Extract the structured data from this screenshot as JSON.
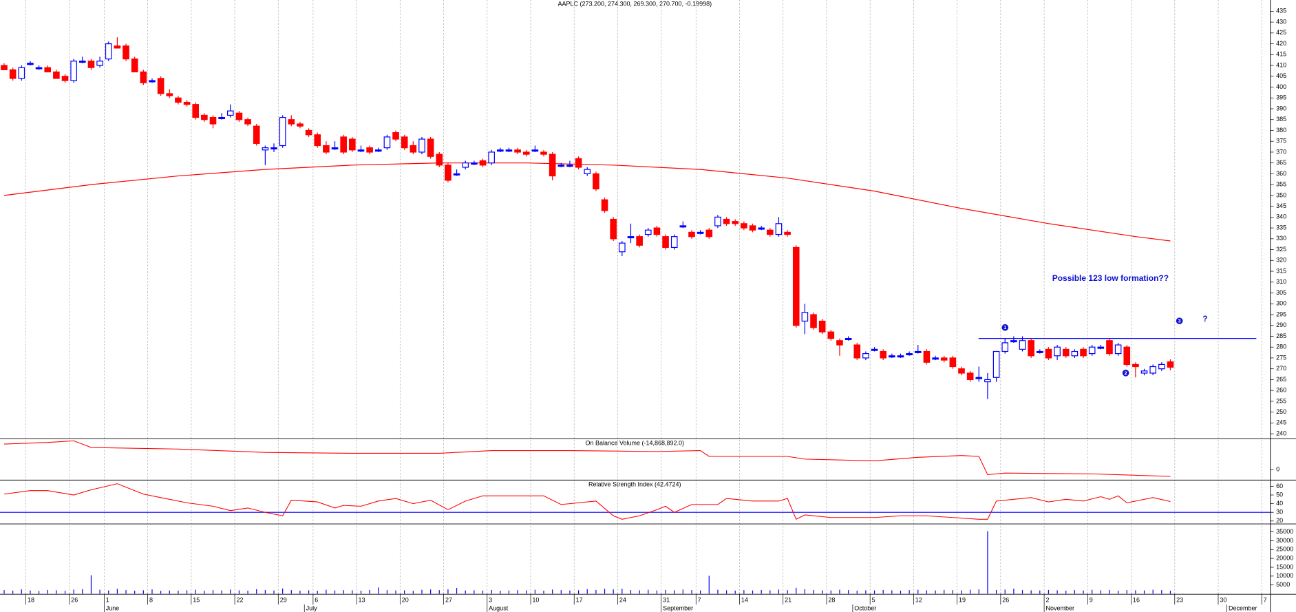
{
  "chart_data": {
    "type": "candlestick",
    "title": "AAPLC (273.200, 274.300, 269.300, 270.700, -0.19998)",
    "up_color": "#0000ff",
    "down_color": "#ff0000",
    "ylim": [
      237.9,
      440.2
    ],
    "yticks": [
      240,
      245,
      250,
      255,
      260,
      265,
      270,
      275,
      280,
      285,
      290,
      295,
      300,
      305,
      310,
      315,
      320,
      325,
      330,
      335,
      340,
      345,
      350,
      355,
      360,
      365,
      370,
      375,
      380,
      385,
      390,
      395,
      400,
      405,
      410,
      415,
      420,
      425,
      430,
      435
    ],
    "xticks": [
      {
        "value": 3,
        "label": "18"
      },
      {
        "value": 8,
        "label": "26"
      },
      {
        "value": 12,
        "label": "1"
      },
      {
        "value": 17,
        "label": "8"
      },
      {
        "value": 22,
        "label": "15"
      },
      {
        "value": 27,
        "label": "22"
      },
      {
        "value": 32,
        "label": "29"
      },
      {
        "value": 36,
        "label": "6"
      },
      {
        "value": 41,
        "label": "13"
      },
      {
        "value": 46,
        "label": "20"
      },
      {
        "value": 51,
        "label": "27"
      },
      {
        "value": 56,
        "label": "3"
      },
      {
        "value": 61,
        "label": "10"
      },
      {
        "value": 66,
        "label": "17"
      },
      {
        "value": 71,
        "label": "24"
      },
      {
        "value": 76,
        "label": "31"
      },
      {
        "value": 80,
        "label": "7"
      },
      {
        "value": 85,
        "label": "14"
      },
      {
        "value": 90,
        "label": "21"
      },
      {
        "value": 95,
        "label": "28"
      },
      {
        "value": 100,
        "label": "5"
      },
      {
        "value": 105,
        "label": "12"
      },
      {
        "value": 110,
        "label": "19"
      },
      {
        "value": 115,
        "label": "26"
      },
      {
        "value": 120,
        "label": "2"
      },
      {
        "value": 125,
        "label": "9"
      },
      {
        "value": 130,
        "label": "16"
      },
      {
        "value": 135,
        "label": "23"
      },
      {
        "value": 140,
        "label": "30"
      },
      {
        "value": 145,
        "label": "7"
      }
    ],
    "months": [
      {
        "value": 12,
        "label": "June"
      },
      {
        "value": 35,
        "label": "July"
      },
      {
        "value": 56,
        "label": "August"
      },
      {
        "value": 76,
        "label": "September"
      },
      {
        "value": 98,
        "label": "October"
      },
      {
        "value": 120,
        "label": "November"
      },
      {
        "value": 141,
        "label": "December"
      }
    ],
    "ohlc": [
      [
        410,
        411,
        408,
        408
      ],
      [
        408,
        409,
        403,
        404
      ],
      [
        404,
        410,
        403,
        409
      ],
      [
        411,
        412,
        410,
        411
      ],
      [
        409,
        410,
        408,
        409
      ],
      [
        409,
        410,
        407,
        407
      ],
      [
        407,
        408,
        404,
        404
      ],
      [
        405,
        406,
        402,
        403
      ],
      [
        403,
        413,
        402,
        412
      ],
      [
        412,
        414,
        411,
        412
      ],
      [
        412,
        413,
        408,
        409
      ],
      [
        410,
        414,
        409,
        412
      ],
      [
        413,
        421,
        412,
        420
      ],
      [
        419,
        423,
        418,
        418
      ],
      [
        419,
        420,
        412,
        413
      ],
      [
        413,
        414,
        407,
        407
      ],
      [
        407,
        408,
        401,
        402
      ],
      [
        403,
        404,
        402,
        403
      ],
      [
        404,
        405,
        396,
        397
      ],
      [
        397,
        399,
        395,
        396
      ],
      [
        395,
        396,
        392,
        393
      ],
      [
        393,
        394,
        391,
        392
      ],
      [
        392,
        393,
        385,
        386
      ],
      [
        387,
        388,
        384,
        385
      ],
      [
        386,
        387,
        381,
        383
      ],
      [
        386,
        388,
        385,
        386
      ],
      [
        387,
        392,
        386,
        389
      ],
      [
        388,
        389,
        384,
        385
      ],
      [
        385,
        386,
        382,
        383
      ],
      [
        382,
        383,
        373,
        374
      ],
      [
        371,
        373,
        364,
        372
      ],
      [
        372,
        374,
        370,
        372
      ],
      [
        373,
        387,
        372,
        386
      ],
      [
        385,
        387,
        382,
        383
      ],
      [
        383,
        384,
        381,
        382
      ],
      [
        380,
        381,
        377,
        378
      ],
      [
        378,
        379,
        372,
        373
      ],
      [
        373,
        375,
        369,
        370
      ],
      [
        372,
        375,
        371,
        372
      ],
      [
        377,
        378,
        369,
        370
      ],
      [
        376,
        377,
        370,
        371
      ],
      [
        371,
        373,
        370,
        371
      ],
      [
        372,
        373,
        369,
        370
      ],
      [
        371,
        372,
        370,
        371
      ],
      [
        372,
        378,
        371,
        377
      ],
      [
        379,
        380,
        375,
        376
      ],
      [
        377,
        378,
        371,
        372
      ],
      [
        373,
        375,
        369,
        370
      ],
      [
        370,
        377,
        369,
        376
      ],
      [
        376,
        377,
        367,
        368
      ],
      [
        369,
        370,
        363,
        364
      ],
      [
        364,
        365,
        356,
        357
      ],
      [
        360,
        362,
        359,
        360
      ],
      [
        363,
        366,
        362,
        365
      ],
      [
        365,
        366,
        364,
        365
      ],
      [
        366,
        367,
        363,
        364
      ],
      [
        365,
        371,
        364,
        370
      ],
      [
        371,
        372,
        370,
        371
      ],
      [
        371,
        372,
        370,
        371
      ],
      [
        371,
        372,
        369,
        370
      ],
      [
        370,
        371,
        368,
        369
      ],
      [
        371,
        373,
        370,
        371
      ],
      [
        370,
        371,
        368,
        369
      ],
      [
        369,
        370,
        357,
        359
      ],
      [
        364,
        365,
        363,
        364
      ],
      [
        364,
        366,
        363,
        364
      ],
      [
        367,
        368,
        362,
        363
      ],
      [
        360,
        363,
        359,
        362
      ],
      [
        360,
        361,
        352,
        353
      ],
      [
        348,
        349,
        342,
        343
      ],
      [
        339,
        340,
        329,
        330
      ],
      [
        324,
        329,
        322,
        328
      ],
      [
        331,
        337,
        328,
        331
      ],
      [
        331,
        332,
        326,
        327
      ],
      [
        332,
        335,
        331,
        334
      ],
      [
        335,
        336,
        331,
        332
      ],
      [
        331,
        332,
        325,
        326
      ],
      [
        326,
        332,
        325,
        331
      ],
      [
        336,
        338,
        335,
        336
      ],
      [
        333,
        334,
        330,
        331
      ],
      [
        333,
        334,
        332,
        333
      ],
      [
        334,
        335,
        330,
        331
      ],
      [
        336,
        341,
        335,
        340
      ],
      [
        339,
        340,
        336,
        337
      ],
      [
        338,
        339,
        336,
        337
      ],
      [
        337,
        338,
        334,
        335
      ],
      [
        336,
        337,
        333,
        334
      ],
      [
        335,
        336,
        334,
        335
      ],
      [
        334,
        335,
        331,
        332
      ],
      [
        332,
        340,
        331,
        337
      ],
      [
        333,
        334,
        331,
        332
      ],
      [
        326,
        327,
        289,
        290
      ],
      [
        292,
        300,
        286,
        296
      ],
      [
        295,
        296,
        288,
        289
      ],
      [
        292,
        293,
        286,
        287
      ],
      [
        287,
        288,
        283,
        284
      ],
      [
        283,
        284,
        276,
        281
      ],
      [
        284,
        285,
        283,
        284
      ],
      [
        281,
        282,
        274,
        275
      ],
      [
        275,
        278,
        274,
        277
      ],
      [
        279,
        280,
        278,
        279
      ],
      [
        278,
        279,
        274,
        275
      ],
      [
        276,
        277,
        275,
        276
      ],
      [
        276,
        277,
        275,
        276
      ],
      [
        277,
        278,
        276,
        277
      ],
      [
        278,
        281,
        277,
        278
      ],
      [
        278,
        279,
        272,
        273
      ],
      [
        275,
        276,
        274,
        275
      ],
      [
        275,
        276,
        273,
        274
      ],
      [
        275,
        276,
        270,
        271
      ],
      [
        270,
        271,
        267,
        268
      ],
      [
        268,
        269,
        264,
        265
      ],
      [
        266,
        271,
        264,
        266
      ],
      [
        264,
        268,
        256,
        265
      ],
      [
        266,
        278,
        264,
        278
      ],
      [
        278,
        284,
        277,
        282
      ],
      [
        283,
        285,
        282,
        283
      ],
      [
        279,
        285,
        278,
        283
      ],
      [
        283,
        284,
        275,
        276
      ],
      [
        278,
        279,
        277,
        278
      ],
      [
        279,
        280,
        274,
        275
      ],
      [
        276,
        281,
        274,
        280
      ],
      [
        279,
        280,
        275,
        276
      ],
      [
        276,
        279,
        275,
        278
      ],
      [
        279,
        280,
        275,
        276
      ],
      [
        277,
        281,
        276,
        280
      ],
      [
        280,
        281,
        279,
        280
      ],
      [
        283,
        284,
        276,
        277
      ],
      [
        277,
        282,
        276,
        281
      ],
      [
        280,
        281,
        271,
        272
      ],
      [
        272,
        273,
        266,
        271
      ],
      [
        268,
        270,
        267,
        269
      ],
      [
        268,
        272,
        267,
        271
      ],
      [
        270,
        273,
        269,
        272
      ],
      [
        273.2,
        274.3,
        269.3,
        270.7
      ]
    ],
    "ma": {
      "color": "#ff0000",
      "x": [
        0,
        10,
        20,
        30,
        40,
        50,
        60,
        70,
        80,
        90,
        100,
        110,
        120,
        130,
        134
      ],
      "values": [
        350,
        355,
        359,
        362,
        364,
        365,
        365,
        364,
        362,
        358,
        352,
        344,
        337,
        331,
        329
      ]
    },
    "level_line": {
      "value": 284,
      "color": "#0000ff"
    },
    "annotation": "Possible 123 low formation??",
    "markers": [
      "1",
      "2",
      "3",
      "?"
    ],
    "obv": {
      "title": "On Balance Volume (-14,868,892.0)",
      "color": "#ff0000",
      "ylim": [
        -22300000,
        68800000
      ],
      "yticks": [
        0
      ],
      "x": [
        0,
        5,
        8,
        10,
        20,
        30,
        40,
        50,
        56,
        65,
        75,
        80,
        81,
        90,
        92,
        100,
        105,
        110,
        112,
        113,
        115,
        125,
        134
      ],
      "values": [
        57700000,
        61400000,
        65000000,
        50000000,
        46500000,
        39000000,
        37000000,
        37000000,
        43000000,
        43000000,
        41000000,
        43000000,
        30000000,
        30000000,
        24000000,
        20000000,
        28000000,
        32000000,
        30000000,
        -11000000,
        -7400000,
        -9300000,
        -14868892
      ]
    },
    "rsi": {
      "title": "Relative Strength Index (42.4724)",
      "color": "#ff0000",
      "ylim": [
        17.1,
        66.7
      ],
      "yticks": [
        20,
        30,
        40,
        50,
        60
      ],
      "level": 30,
      "level_color": "#0000ff",
      "x": [
        0,
        3,
        5,
        8,
        10,
        13,
        16,
        18,
        21,
        24,
        26,
        28,
        30,
        32,
        33,
        36,
        38,
        39,
        41,
        43,
        45,
        47,
        49,
        51,
        53,
        55,
        62,
        64,
        68,
        70,
        71,
        73,
        75,
        76,
        77,
        79,
        82,
        83,
        86,
        89,
        90,
        91,
        92,
        95,
        100,
        103,
        106,
        109,
        112,
        113,
        114,
        117,
        118,
        120,
        122,
        124,
        126,
        127,
        128,
        129,
        132,
        134
      ],
      "values": [
        51,
        55,
        55,
        50,
        56,
        63,
        51,
        47,
        41,
        37,
        32,
        35,
        30,
        26,
        44,
        42,
        35,
        38,
        37,
        43,
        46,
        40,
        44,
        33,
        43,
        49,
        49,
        39,
        43,
        26,
        22,
        26,
        33,
        37,
        30,
        39,
        39,
        46,
        43,
        43,
        46,
        22,
        27,
        24,
        24,
        26,
        26,
        24,
        22,
        22,
        43,
        46,
        47,
        42,
        45,
        43,
        48,
        45,
        49,
        41,
        47,
        42.4724
      ]
    },
    "volume": {
      "color": "#0000ff",
      "ylim": [
        0,
        39250
      ],
      "yticks": [
        5000,
        10000,
        15000,
        20000,
        25000,
        30000,
        35000
      ],
      "values": [
        2100,
        1800,
        2500,
        1900,
        1600,
        2200,
        2000,
        1700,
        2400,
        2600,
        10500,
        2300,
        1900,
        2800,
        2100,
        1800,
        2000,
        2500,
        1700,
        1900,
        1800,
        2000,
        2300,
        1700,
        2100,
        1900,
        2400,
        2000,
        1800,
        2600,
        2200,
        1900,
        3000,
        2100,
        1800,
        2000,
        1700,
        2300,
        1900,
        2100,
        2000,
        1800,
        2200,
        3600,
        2100,
        1900,
        2000,
        1700,
        2300,
        2400,
        2100,
        2500,
        3300,
        1900,
        2000,
        1800,
        2200,
        1700,
        1900,
        2100,
        2000,
        2300,
        1800,
        2400,
        2100,
        1900,
        2000,
        2600,
        2200,
        2800,
        2500,
        2900,
        2100,
        2000,
        2300,
        1900,
        2200,
        2000,
        2400,
        2100,
        1900,
        10200,
        2300,
        2000,
        1800,
        2100,
        1900,
        2200,
        2000,
        2400,
        2100,
        3400,
        2600,
        2200,
        2000,
        1900,
        2300,
        2100,
        1800,
        2000,
        1900,
        2200,
        2000,
        1800,
        2100,
        2300,
        2000,
        1900,
        2200,
        2100,
        2000,
        2300,
        2500,
        35400,
        2200,
        2400,
        2900,
        2100,
        2000,
        1900,
        2200,
        2000,
        1800,
        2100,
        1900,
        2300,
        2000,
        2200,
        1800,
        2100,
        2000,
        1900,
        2300,
        2100,
        1700
      ]
    }
  }
}
